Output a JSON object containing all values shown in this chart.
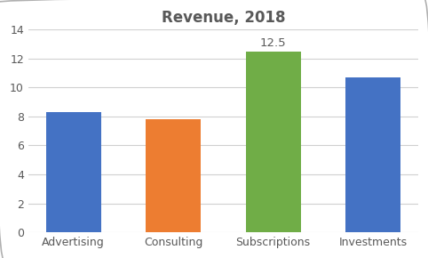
{
  "title": "Revenue, 2018",
  "categories": [
    "Advertising",
    "Consulting",
    "Subscriptions",
    "Investments"
  ],
  "values": [
    8.3,
    7.8,
    12.5,
    10.7
  ],
  "bar_colors": [
    "#4472C4",
    "#ED7D31",
    "#70AD47",
    "#4472C4"
  ],
  "highlighted_index": 2,
  "highlighted_label": "12.5",
  "ylim": [
    0,
    14
  ],
  "yticks": [
    0,
    2,
    4,
    6,
    8,
    10,
    12,
    14
  ],
  "title_fontsize": 12,
  "tick_fontsize": 9,
  "label_fontsize": 9,
  "annotation_fontsize": 9.5,
  "background_color": "#ffffff",
  "grid_color": "#d0d0d0",
  "bar_width": 0.55,
  "title_color": "#595959",
  "tick_color": "#595959"
}
